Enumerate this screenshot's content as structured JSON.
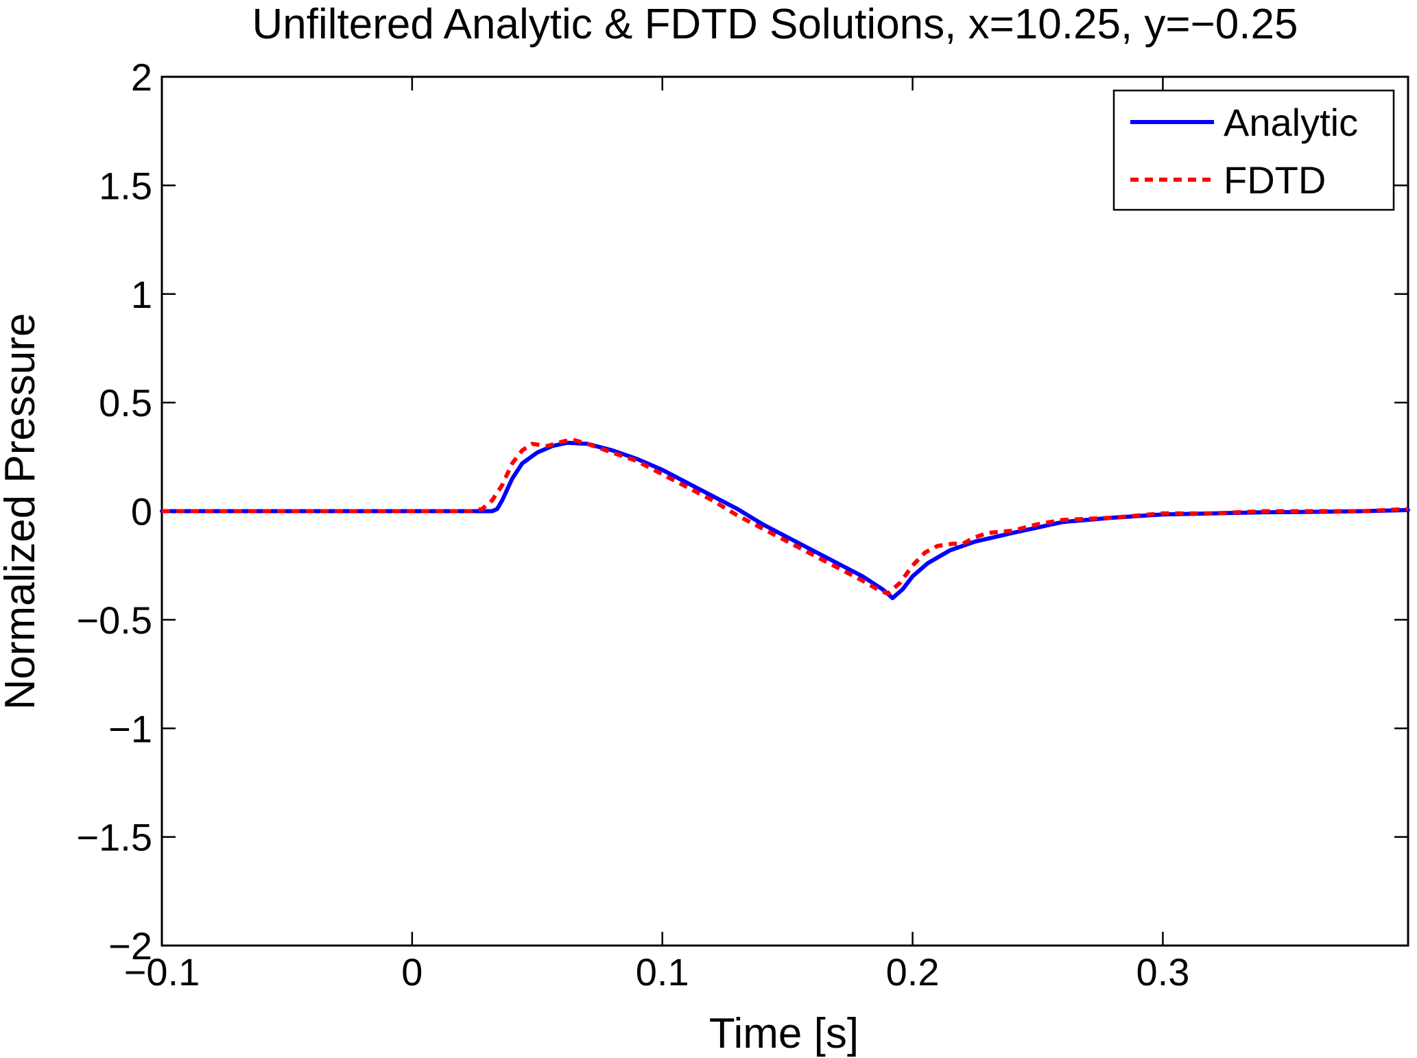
{
  "chart_data": {
    "type": "line",
    "title": "Unfiltered Analytic & FDTD Solutions, x=10.25, y=−0.25",
    "xlabel": "Time [s]",
    "ylabel": "Normalized Pressure",
    "xlim": [
      -0.1,
      0.398
    ],
    "ylim": [
      -2,
      2
    ],
    "xticks": [
      -0.1,
      0,
      0.1,
      0.2,
      0.3
    ],
    "xtick_labels": [
      "−0.1",
      "0",
      "0.1",
      "0.2",
      "0.3"
    ],
    "yticks": [
      -2,
      -1.5,
      -1,
      -0.5,
      0,
      0.5,
      1,
      1.5,
      2
    ],
    "ytick_labels": [
      "−2",
      "−1.5",
      "−1",
      "−0.5",
      "0",
      "0.5",
      "1",
      "1.5",
      "2"
    ],
    "grid": false,
    "legend_position": "top-right",
    "series": [
      {
        "name": "Analytic",
        "color": "#0000ff",
        "style": "solid",
        "x": [
          -0.1,
          0.0,
          0.032,
          0.034,
          0.036,
          0.04,
          0.044,
          0.05,
          0.056,
          0.062,
          0.07,
          0.08,
          0.09,
          0.1,
          0.11,
          0.12,
          0.13,
          0.14,
          0.15,
          0.16,
          0.17,
          0.18,
          0.188,
          0.192,
          0.196,
          0.2,
          0.206,
          0.215,
          0.225,
          0.24,
          0.26,
          0.28,
          0.3,
          0.32,
          0.34,
          0.36,
          0.38,
          0.398
        ],
        "y": [
          0.0,
          0.0,
          0.0,
          0.01,
          0.05,
          0.15,
          0.22,
          0.27,
          0.3,
          0.315,
          0.31,
          0.28,
          0.24,
          0.19,
          0.13,
          0.07,
          0.01,
          -0.06,
          -0.12,
          -0.18,
          -0.24,
          -0.3,
          -0.36,
          -0.4,
          -0.36,
          -0.3,
          -0.24,
          -0.18,
          -0.14,
          -0.1,
          -0.05,
          -0.03,
          -0.015,
          -0.01,
          -0.005,
          -0.003,
          0.0,
          0.005
        ]
      },
      {
        "name": "FDTD",
        "color": "#ff0000",
        "style": "dashed",
        "x": [
          -0.1,
          0.0,
          0.024,
          0.028,
          0.032,
          0.036,
          0.04,
          0.044,
          0.048,
          0.054,
          0.06,
          0.064,
          0.07,
          0.08,
          0.09,
          0.1,
          0.11,
          0.12,
          0.13,
          0.14,
          0.15,
          0.16,
          0.17,
          0.18,
          0.186,
          0.19,
          0.195,
          0.2,
          0.205,
          0.21,
          0.216,
          0.22,
          0.225,
          0.23,
          0.24,
          0.25,
          0.26,
          0.28,
          0.3,
          0.32,
          0.34,
          0.36,
          0.38,
          0.398
        ],
        "y": [
          0.0,
          0.0,
          0.0,
          0.01,
          0.05,
          0.12,
          0.22,
          0.28,
          0.31,
          0.3,
          0.32,
          0.33,
          0.31,
          0.27,
          0.23,
          0.17,
          0.11,
          0.05,
          -0.02,
          -0.08,
          -0.14,
          -0.2,
          -0.26,
          -0.32,
          -0.36,
          -0.38,
          -0.33,
          -0.25,
          -0.19,
          -0.16,
          -0.15,
          -0.15,
          -0.12,
          -0.1,
          -0.09,
          -0.06,
          -0.04,
          -0.03,
          -0.01,
          -0.01,
          0.0,
          0.0,
          0.0,
          0.01
        ]
      }
    ]
  }
}
